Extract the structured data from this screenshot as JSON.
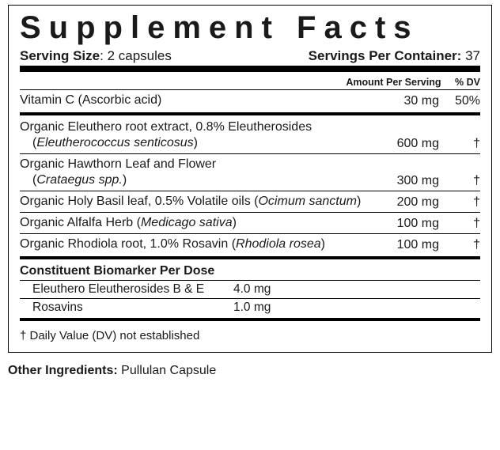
{
  "title": "Supplement Facts",
  "serving_size_label": "Serving Size",
  "serving_size_value": "2 capsules",
  "servings_per_label": "Servings Per Container:",
  "servings_per_value": "37",
  "col_amount": "Amount Per Serving",
  "col_dv": "% DV",
  "vitamin": {
    "name": "Vitamin C (Ascorbic acid)",
    "amount": "30 mg",
    "dv": "50%"
  },
  "herbs": [
    {
      "name_line1": "Organic Eleuthero root extract, 0.8% Eleutherosides",
      "sci_prefix": "(",
      "sci": "Eleutherococcus senticosus",
      "sci_suffix": ")",
      "sci_on_second_line": true,
      "amount": "600 mg",
      "dv": "†"
    },
    {
      "name_line1": "Organic Hawthorn Leaf and Flower",
      "sci_prefix": "(",
      "sci": "Crataegus spp.",
      "sci_suffix": ")",
      "sci_on_second_line": true,
      "amount": "300 mg",
      "dv": "†"
    },
    {
      "name_line1": "Organic Holy Basil leaf, 0.5% Volatile oils",
      "sci_prefix": "  (",
      "sci": "Ocimum sanctum",
      "sci_suffix": ")",
      "sci_on_second_line": false,
      "amount": "200 mg",
      "dv": "†"
    },
    {
      "name_line1": "Organic Alfalfa Herb",
      "sci_prefix": " (",
      "sci": "Medicago sativa",
      "sci_suffix": ")",
      "sci_on_second_line": false,
      "amount": "100 mg",
      "dv": "†"
    },
    {
      "name_line1": "Organic Rhodiola root, 1.0% Rosavin",
      "sci_prefix": " (",
      "sci": "Rhodiola rosea",
      "sci_suffix": ")",
      "sci_on_second_line": false,
      "amount": "100 mg",
      "dv": "†"
    }
  ],
  "biomarker_heading": "Constituent Biomarker Per Dose",
  "biomarkers": [
    {
      "name": "Eleuthero Eleutherosides B & E",
      "value": "4.0 mg"
    },
    {
      "name": "Rosavins",
      "value": "1.0 mg"
    }
  ],
  "footnote": "† Daily Value (DV) not established",
  "other_label": "Other Ingredients:",
  "other_value": "Pullulan Capsule"
}
